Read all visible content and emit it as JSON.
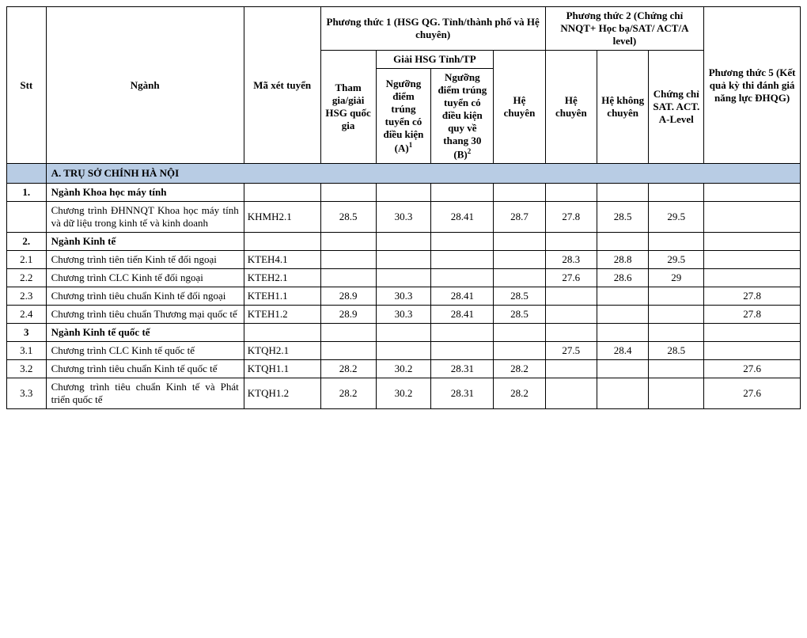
{
  "header": {
    "stt": "Stt",
    "nganh": "Ngành",
    "ma_xet_tuyen": "Mã xét tuyển",
    "pt1_group": "Phương thức 1 (HSG QG. Tỉnh/thành phố và Hệ chuyên)",
    "pt1_thamgia": "Tham gia/giải HSG quốc gia",
    "pt1_giai_group": "Giải HSG Tỉnh/TP",
    "pt1_nguong_a": "Ngưỡng điểm trúng tuyển có điều kiện (A)",
    "pt1_nguong_b": "Ngưỡng điểm trúng tuyển có điều kiện quy về thang 30 (B)",
    "pt1_hechuyen": "Hệ chuyên",
    "pt2_group": "Phương thức 2 (Chứng chỉ NNQT+ Học bạ/SAT/ ACT/A level)",
    "pt2_hechuyen": "Hệ chuyên",
    "pt2_khongchuyen": "Hệ không chuyên",
    "pt2_chungchi": "Chứng chỉ SAT. ACT. A-Level",
    "pt5": "Phương thức 5 (Kết quả kỳ thi đánh giá năng lực ĐHQG)"
  },
  "section": "A. TRỤ SỞ CHÍNH HÀ NỘI",
  "rows": [
    {
      "stt": "1.",
      "name": "Ngành Khoa học máy tính",
      "bold": true,
      "code": "",
      "vals": [
        "",
        "",
        "",
        "",
        "",
        "",
        "",
        ""
      ]
    },
    {
      "stt": "",
      "name": "Chương trình ĐHNNQT Khoa học máy tính và dữ liệu trong kinh tế và kinh doanh",
      "code": "KHMH2.1",
      "vals": [
        "28.5",
        "30.3",
        "28.41",
        "28.7",
        "27.8",
        "28.5",
        "29.5",
        ""
      ]
    },
    {
      "stt": "2.",
      "name": "Ngành Kinh tế",
      "bold": true,
      "code": "",
      "vals": [
        "",
        "",
        "",
        "",
        "",
        "",
        "",
        ""
      ]
    },
    {
      "stt": "2.1",
      "name": "Chương trình tiên tiến Kinh tế đối ngoại",
      "code": "KTEH4.1",
      "vals": [
        "",
        "",
        "",
        "",
        "28.3",
        "28.8",
        "29.5",
        ""
      ]
    },
    {
      "stt": "2.2",
      "name": "Chương trình CLC Kinh tế đối ngoại",
      "code": "KTEH2.1",
      "vals": [
        "",
        "",
        "",
        "",
        "27.6",
        "28.6",
        "29",
        ""
      ]
    },
    {
      "stt": "2.3",
      "name": "Chương trình tiêu chuẩn Kinh tế   đối ngoại",
      "code": "KTEH1.1",
      "vals": [
        "28.9",
        "30.3",
        "28.41",
        "28.5",
        "",
        "",
        "",
        "27.8"
      ]
    },
    {
      "stt": "2.4",
      "name": "Chương trình tiêu chuẩn Thương mại quốc tế",
      "code": "KTEH1.2",
      "vals": [
        "28.9",
        "30.3",
        "28.41",
        "28.5",
        "",
        "",
        "",
        "27.8"
      ]
    },
    {
      "stt": "3",
      "name": "Ngành Kinh tế quốc tế",
      "bold": true,
      "code": "",
      "vals": [
        "",
        "",
        "",
        "",
        "",
        "",
        "",
        ""
      ]
    },
    {
      "stt": "3.1",
      "name": "Chương trình CLC Kinh tế quốc tế",
      "code": "KTQH2.1",
      "vals": [
        "",
        "",
        "",
        "",
        "27.5",
        "28.4",
        "28.5",
        ""
      ]
    },
    {
      "stt": "3.2",
      "name": "Chương trình tiêu chuẩn Kinh tế  quốc tế",
      "code": "KTQH1.1",
      "vals": [
        "28.2",
        "30.2",
        "28.31",
        "28.2",
        "",
        "",
        "",
        "27.6"
      ]
    },
    {
      "stt": "3.3",
      "name": "Chương trình tiêu chuẩn Kinh tế và Phát triển quốc tế",
      "code": "KTQH1.2",
      "vals": [
        "28.2",
        "30.2",
        "28.31",
        "28.2",
        "",
        "",
        "",
        "27.6"
      ]
    }
  ]
}
